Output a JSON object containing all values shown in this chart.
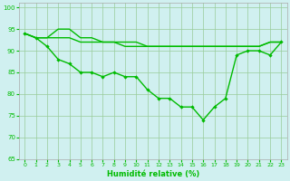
{
  "x": [
    0,
    1,
    2,
    3,
    4,
    5,
    6,
    7,
    8,
    9,
    10,
    11,
    12,
    13,
    14,
    15,
    16,
    17,
    18,
    19,
    20,
    21,
    22,
    23
  ],
  "s1": [
    94,
    93,
    93,
    93,
    93,
    92,
    92,
    92,
    92,
    91,
    91,
    91,
    91,
    91,
    91,
    91,
    91,
    91,
    91,
    91,
    91,
    91,
    92,
    92
  ],
  "s2": [
    94,
    93,
    93,
    95,
    95,
    93,
    93,
    92,
    92,
    92,
    92,
    91,
    91,
    91,
    91,
    91,
    91,
    91,
    91,
    91,
    91,
    91,
    92,
    92
  ],
  "s3": [
    94,
    93,
    91,
    88,
    87,
    85,
    85,
    84,
    85,
    84,
    84,
    81,
    79,
    79,
    77,
    77,
    74,
    77,
    79,
    89,
    90,
    90,
    89,
    92
  ],
  "ylim": [
    65,
    101
  ],
  "xlim": [
    -0.5,
    23.5
  ],
  "yticks": [
    65,
    70,
    75,
    80,
    85,
    90,
    95,
    100
  ],
  "xticks": [
    0,
    1,
    2,
    3,
    4,
    5,
    6,
    7,
    8,
    9,
    10,
    11,
    12,
    13,
    14,
    15,
    16,
    17,
    18,
    19,
    20,
    21,
    22,
    23
  ],
  "xlabel": "Humidité relative (%)",
  "line_color": "#00bb00",
  "bg_color": "#d0f0f0",
  "grid_color": "#99cc99",
  "marker": "D",
  "marker_size": 2.2,
  "linewidth": 1.0
}
